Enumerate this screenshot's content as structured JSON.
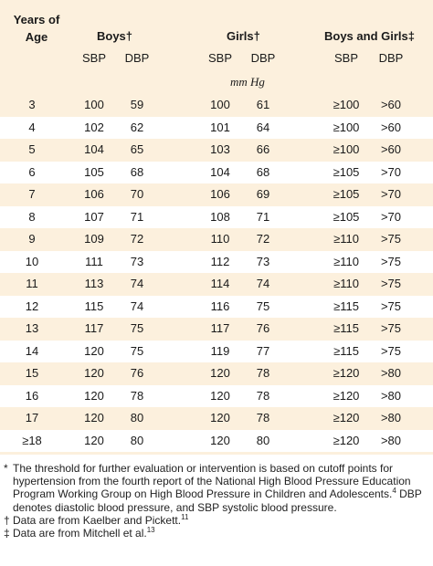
{
  "header": {
    "years_of_age": "Years of Age",
    "boys": "Boys†",
    "girls": "Girls†",
    "both": "Boys and Girls‡",
    "sbp": "SBP",
    "dbp": "DBP",
    "unit": "mm Hg"
  },
  "rows": [
    {
      "age": "3",
      "boys_sbp": "100",
      "boys_dbp": "59",
      "girls_sbp": "100",
      "girls_dbp": "61",
      "both_sbp": "≥100",
      "both_dbp": ">60"
    },
    {
      "age": "4",
      "boys_sbp": "102",
      "boys_dbp": "62",
      "girls_sbp": "101",
      "girls_dbp": "64",
      "both_sbp": "≥100",
      "both_dbp": ">60"
    },
    {
      "age": "5",
      "boys_sbp": "104",
      "boys_dbp": "65",
      "girls_sbp": "103",
      "girls_dbp": "66",
      "both_sbp": "≥100",
      "both_dbp": ">60"
    },
    {
      "age": "6",
      "boys_sbp": "105",
      "boys_dbp": "68",
      "girls_sbp": "104",
      "girls_dbp": "68",
      "both_sbp": "≥105",
      "both_dbp": ">70"
    },
    {
      "age": "7",
      "boys_sbp": "106",
      "boys_dbp": "70",
      "girls_sbp": "106",
      "girls_dbp": "69",
      "both_sbp": "≥105",
      "both_dbp": ">70"
    },
    {
      "age": "8",
      "boys_sbp": "107",
      "boys_dbp": "71",
      "girls_sbp": "108",
      "girls_dbp": "71",
      "both_sbp": "≥105",
      "both_dbp": ">70"
    },
    {
      "age": "9",
      "boys_sbp": "109",
      "boys_dbp": "72",
      "girls_sbp": "110",
      "girls_dbp": "72",
      "both_sbp": "≥110",
      "both_dbp": ">75"
    },
    {
      "age": "10",
      "boys_sbp": "111",
      "boys_dbp": "73",
      "girls_sbp": "112",
      "girls_dbp": "73",
      "both_sbp": "≥110",
      "both_dbp": ">75"
    },
    {
      "age": "11",
      "boys_sbp": "113",
      "boys_dbp": "74",
      "girls_sbp": "114",
      "girls_dbp": "74",
      "both_sbp": "≥110",
      "both_dbp": ">75"
    },
    {
      "age": "12",
      "boys_sbp": "115",
      "boys_dbp": "74",
      "girls_sbp": "116",
      "girls_dbp": "75",
      "both_sbp": "≥115",
      "both_dbp": ">75"
    },
    {
      "age": "13",
      "boys_sbp": "117",
      "boys_dbp": "75",
      "girls_sbp": "117",
      "girls_dbp": "76",
      "both_sbp": "≥115",
      "both_dbp": ">75"
    },
    {
      "age": "14",
      "boys_sbp": "120",
      "boys_dbp": "75",
      "girls_sbp": "119",
      "girls_dbp": "77",
      "both_sbp": "≥115",
      "both_dbp": ">75"
    },
    {
      "age": "15",
      "boys_sbp": "120",
      "boys_dbp": "76",
      "girls_sbp": "120",
      "girls_dbp": "78",
      "both_sbp": "≥120",
      "both_dbp": ">80"
    },
    {
      "age": "16",
      "boys_sbp": "120",
      "boys_dbp": "78",
      "girls_sbp": "120",
      "girls_dbp": "78",
      "both_sbp": "≥120",
      "both_dbp": ">80"
    },
    {
      "age": "17",
      "boys_sbp": "120",
      "boys_dbp": "80",
      "girls_sbp": "120",
      "girls_dbp": "78",
      "both_sbp": "≥120",
      "both_dbp": ">80"
    },
    {
      "age": "≥18",
      "boys_sbp": "120",
      "boys_dbp": "80",
      "girls_sbp": "120",
      "girls_dbp": "80",
      "both_sbp": "≥120",
      "both_dbp": ">80"
    }
  ],
  "footnotes": {
    "star_mark": "*",
    "star_text_1": "The threshold for further evaluation or intervention is based on cutoff points for hypertension from the fourth report of the National High Blood Pressure Education Program Working Group on High Blood Pressure in Children and Adolescents.",
    "star_ref": "4",
    "star_text_2": " DBP denotes diastolic blood pressure, and SBP systolic blood pressure.",
    "dagger_mark": "†",
    "dagger_text": "Data are from Kaelber and Pickett.",
    "dagger_ref": "11",
    "ddagger_mark": "‡",
    "ddagger_text": "Data are from Mitchell et al.",
    "ddagger_ref": "13"
  },
  "colors": {
    "shaded_row": "#fcf0dd",
    "white_row": "#ffffff"
  }
}
